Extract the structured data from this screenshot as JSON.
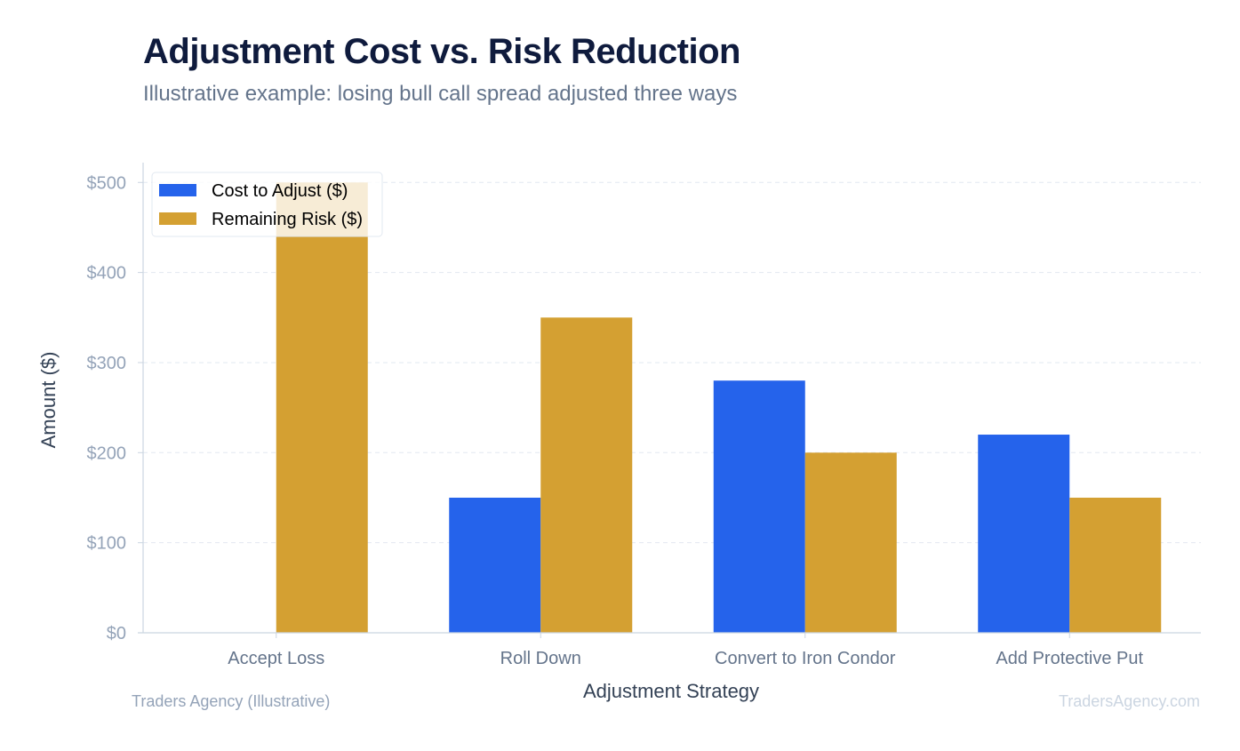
{
  "chart_data": {
    "type": "bar",
    "title": "Adjustment Cost vs. Risk Reduction",
    "subtitle": "Illustrative example: losing bull call spread adjusted three ways",
    "xlabel": "Adjustment Strategy",
    "ylabel": "Amount ($)",
    "categories": [
      "Accept Loss",
      "Roll Down",
      "Convert to Iron Condor",
      "Add Protective Put"
    ],
    "series": [
      {
        "name": "Cost to Adjust ($)",
        "values": [
          0,
          150,
          280,
          220
        ],
        "color": "#2563eb"
      },
      {
        "name": "Remaining Risk ($)",
        "values": [
          500,
          350,
          200,
          150
        ],
        "color": "#d4a032"
      }
    ],
    "ylim": [
      0,
      520
    ],
    "yticks": [
      0,
      100,
      200,
      300,
      400,
      500
    ],
    "ytick_labels": [
      "$0",
      "$100",
      "$200",
      "$300",
      "$400",
      "$500"
    ],
    "grid": true,
    "legend_position": "top-left"
  },
  "footer": {
    "source": "Traders Agency (Illustrative)",
    "watermark": "TradersAgency.com"
  },
  "colors": {
    "title": "#0f1b3d",
    "subtitle": "#64748b",
    "axis": "#cbd5e1",
    "grid": "#e2e8f0",
    "tick_label": "#94a3b8",
    "category_label": "#64748b",
    "axis_title": "#334155"
  }
}
